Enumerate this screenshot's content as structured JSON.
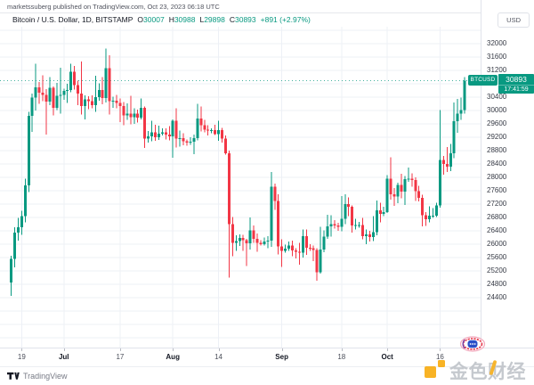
{
  "attribution": {
    "text": "marketssuberg published on TradingView.com, Oct 23, 2023 06:18 UTC"
  },
  "legend": {
    "title": "Bitcoin / U.S. Dollar, 1D, BITSTAMP",
    "open_label": "O",
    "open": "30007",
    "high_label": "H",
    "high": "30988",
    "low_label": "L",
    "low": "29898",
    "close_label": "C",
    "close": "30893",
    "change": "+891 (+2.97%)"
  },
  "price_axis": {
    "currency": "USD",
    "ticks": [
      32000,
      31600,
      31200,
      30400,
      30000,
      29600,
      29200,
      28800,
      28400,
      28000,
      27600,
      27200,
      26800,
      26400,
      26000,
      25600,
      25200,
      24800,
      24400
    ]
  },
  "time_axis": {
    "ticks": [
      {
        "label": "19",
        "day": 3,
        "month": false
      },
      {
        "label": "Jul",
        "day": 15,
        "month": true
      },
      {
        "label": "17",
        "day": 31,
        "month": false
      },
      {
        "label": "Aug",
        "day": 46,
        "month": true
      },
      {
        "label": "14",
        "day": 59,
        "month": false
      },
      {
        "label": "Sep",
        "day": 77,
        "month": true
      },
      {
        "label": "18",
        "day": 94,
        "month": false
      },
      {
        "label": "Oct",
        "day": 107,
        "month": true
      },
      {
        "label": "16",
        "day": 122,
        "month": false
      }
    ]
  },
  "last_price_label": {
    "symbol": "BTCUSD",
    "price": "30893",
    "countdown": "17:41:59"
  },
  "footer": {
    "brand": "TradingView"
  },
  "watermark": {
    "text_left": "金色",
    "text_cai": "财",
    "text_right": "经"
  },
  "colors": {
    "up": "#089981",
    "down": "#f23645",
    "grid": "#edf0f6",
    "axis_border": "#e0e3eb",
    "text_dark": "#131722",
    "text_muted": "#787b86",
    "orange": "#f7a600",
    "seal_red": "#e8374a",
    "seal_pink": "#f2a9bd",
    "seal_blue": "#2b50c8"
  },
  "chart_data": {
    "type": "candlestick",
    "title": "Bitcoin / U.S. Dollar",
    "symbol": "BTCUSD",
    "exchange": "BITSTAMP",
    "interval": "1D",
    "start_date": "2023-06-16",
    "end_date": "2023-10-23",
    "price_range_view": [
      22900,
      32500
    ],
    "grid_step": 400,
    "last_price": 30893,
    "ohlc_note": "daily candles [open, high, low, close] from 2023-06-16 to 2023-10-23",
    "candles_ohlc": [
      [
        24850,
        25650,
        24450,
        25560
      ],
      [
        25560,
        26500,
        25300,
        26340
      ],
      [
        26340,
        26780,
        26100,
        26500
      ],
      [
        26500,
        27000,
        26280,
        26830
      ],
      [
        26830,
        27950,
        26650,
        27750
      ],
      [
        27750,
        29950,
        27550,
        29830
      ],
      [
        29830,
        30500,
        29350,
        30380
      ],
      [
        30380,
        31400,
        30000,
        30690
      ],
      [
        30690,
        30850,
        30200,
        30530
      ],
      [
        30530,
        31050,
        30280,
        30460
      ],
      [
        30460,
        30640,
        29280,
        30260
      ],
      [
        30260,
        31000,
        30150,
        30680
      ],
      [
        30680,
        30710,
        29850,
        30070
      ],
      [
        30070,
        30820,
        30010,
        30440
      ],
      [
        30440,
        31270,
        29900,
        30460
      ],
      [
        30460,
        30650,
        30320,
        30580
      ],
      [
        30580,
        30790,
        30220,
        30610
      ],
      [
        30610,
        31390,
        30540,
        31150
      ],
      [
        31150,
        31330,
        30620,
        30760
      ],
      [
        30760,
        30890,
        30150,
        30500
      ],
      [
        30500,
        31460,
        29870,
        30130
      ],
      [
        30130,
        30450,
        29730,
        30330
      ],
      [
        30330,
        30420,
        30040,
        30280
      ],
      [
        30280,
        30450,
        30060,
        30160
      ],
      [
        30160,
        31040,
        29950,
        30400
      ],
      [
        30400,
        30810,
        30290,
        30610
      ],
      [
        30610,
        30990,
        30180,
        30370
      ],
      [
        30370,
        31850,
        30230,
        31260
      ],
      [
        31260,
        31650,
        29880,
        30280
      ],
      [
        30280,
        30410,
        30080,
        30290
      ],
      [
        30290,
        30460,
        30060,
        30220
      ],
      [
        30220,
        30350,
        29650,
        30130
      ],
      [
        30130,
        30250,
        29560,
        29850
      ],
      [
        29850,
        30210,
        29720,
        29900
      ],
      [
        29900,
        30440,
        29580,
        29790
      ],
      [
        29790,
        30060,
        29590,
        29900
      ],
      [
        29900,
        30020,
        29640,
        29780
      ],
      [
        29780,
        30350,
        29730,
        30070
      ],
      [
        30070,
        30110,
        28870,
        29160
      ],
      [
        29160,
        29380,
        29040,
        29220
      ],
      [
        29220,
        29690,
        29080,
        29340
      ],
      [
        29340,
        29570,
        29090,
        29200
      ],
      [
        29200,
        29540,
        29110,
        29300
      ],
      [
        29300,
        29460,
        29250,
        29340
      ],
      [
        29340,
        29460,
        29130,
        29270
      ],
      [
        29270,
        29530,
        29100,
        29220
      ],
      [
        29220,
        29730,
        28580,
        29690
      ],
      [
        29690,
        30060,
        28890,
        29160
      ],
      [
        29160,
        29400,
        28920,
        29170
      ],
      [
        29170,
        29310,
        28950,
        29070
      ],
      [
        29070,
        29130,
        28940,
        29040
      ],
      [
        29040,
        29190,
        28970,
        29060
      ],
      [
        29060,
        29280,
        28690,
        29170
      ],
      [
        29170,
        30190,
        29100,
        29750
      ],
      [
        29750,
        30110,
        29370,
        29550
      ],
      [
        29550,
        29710,
        29340,
        29420
      ],
      [
        29420,
        29550,
        29250,
        29390
      ],
      [
        29390,
        29460,
        29320,
        29410
      ],
      [
        29410,
        29570,
        29260,
        29290
      ],
      [
        29290,
        29690,
        29090,
        29410
      ],
      [
        29410,
        29470,
        29040,
        29160
      ],
      [
        29160,
        29250,
        28680,
        28710
      ],
      [
        28710,
        28790,
        24990,
        26600
      ],
      [
        26600,
        26810,
        25640,
        26040
      ],
      [
        26040,
        26260,
        25790,
        26090
      ],
      [
        26090,
        26290,
        25940,
        26180
      ],
      [
        26180,
        26270,
        25800,
        26110
      ],
      [
        26110,
        26150,
        25340,
        26020
      ],
      [
        26020,
        26800,
        25840,
        26410
      ],
      [
        26410,
        26550,
        26040,
        26150
      ],
      [
        26150,
        26310,
        25770,
        26040
      ],
      [
        26040,
        26120,
        25950,
        26000
      ],
      [
        26000,
        26190,
        25960,
        26080
      ],
      [
        26080,
        26230,
        25880,
        26100
      ],
      [
        26100,
        28150,
        25910,
        27710
      ],
      [
        27710,
        27810,
        27020,
        27290
      ],
      [
        27290,
        27490,
        25690,
        25930
      ],
      [
        25930,
        26140,
        25320,
        25790
      ],
      [
        25790,
        25980,
        25740,
        25860
      ],
      [
        25860,
        26080,
        25800,
        25960
      ],
      [
        25960,
        26100,
        25640,
        25810
      ],
      [
        25810,
        25880,
        25570,
        25770
      ],
      [
        25770,
        26040,
        25380,
        25740
      ],
      [
        25740,
        26430,
        25600,
        26240
      ],
      [
        26240,
        26430,
        25670,
        25890
      ],
      [
        25890,
        26000,
        25790,
        25880
      ],
      [
        25880,
        25960,
        25490,
        25820
      ],
      [
        25820,
        25880,
        24900,
        25150
      ],
      [
        25150,
        26510,
        25120,
        25830
      ],
      [
        25830,
        26410,
        25750,
        26220
      ],
      [
        26220,
        26870,
        26160,
        26530
      ],
      [
        26530,
        26860,
        26220,
        26590
      ],
      [
        26590,
        26710,
        26460,
        26560
      ],
      [
        26560,
        26640,
        26390,
        26520
      ],
      [
        26520,
        27440,
        26380,
        26750
      ],
      [
        26750,
        27490,
        26590,
        27200
      ],
      [
        27200,
        27400,
        26840,
        27110
      ],
      [
        27110,
        27160,
        26340,
        26560
      ],
      [
        26560,
        26750,
        26440,
        26570
      ],
      [
        26570,
        26660,
        26490,
        26570
      ],
      [
        26570,
        26780,
        26140,
        26240
      ],
      [
        26240,
        26440,
        25990,
        26290
      ],
      [
        26290,
        26400,
        26080,
        26210
      ],
      [
        26210,
        26830,
        26090,
        26350
      ],
      [
        26350,
        27300,
        26260,
        27010
      ],
      [
        27010,
        27240,
        26650,
        26900
      ],
      [
        26900,
        27110,
        26840,
        26950
      ],
      [
        26950,
        28060,
        26930,
        27960
      ],
      [
        27960,
        28590,
        27330,
        27490
      ],
      [
        27490,
        27680,
        27140,
        27420
      ],
      [
        27420,
        27830,
        27220,
        27770
      ],
      [
        27770,
        28100,
        27370,
        27570
      ],
      [
        27570,
        28040,
        27170,
        27940
      ],
      [
        27940,
        28290,
        27860,
        27950
      ],
      [
        27950,
        28110,
        27710,
        27910
      ],
      [
        27910,
        28000,
        27290,
        27580
      ],
      [
        27580,
        27740,
        27280,
        27380
      ],
      [
        27380,
        27480,
        26530,
        26860
      ],
      [
        26860,
        26950,
        26540,
        26740
      ],
      [
        26740,
        27130,
        26650,
        26850
      ],
      [
        26850,
        27070,
        26780,
        26850
      ],
      [
        26850,
        27240,
        26810,
        27150
      ],
      [
        27150,
        30010,
        27090,
        28510
      ],
      [
        28510,
        28630,
        28070,
        28400
      ],
      [
        28400,
        28900,
        28160,
        28310
      ],
      [
        28310,
        29000,
        28180,
        28710
      ],
      [
        28710,
        30230,
        28570,
        29670
      ],
      [
        29670,
        30340,
        29330,
        29900
      ],
      [
        29900,
        30380,
        29710,
        30007
      ],
      [
        30007,
        30988,
        29898,
        30893
      ]
    ]
  }
}
